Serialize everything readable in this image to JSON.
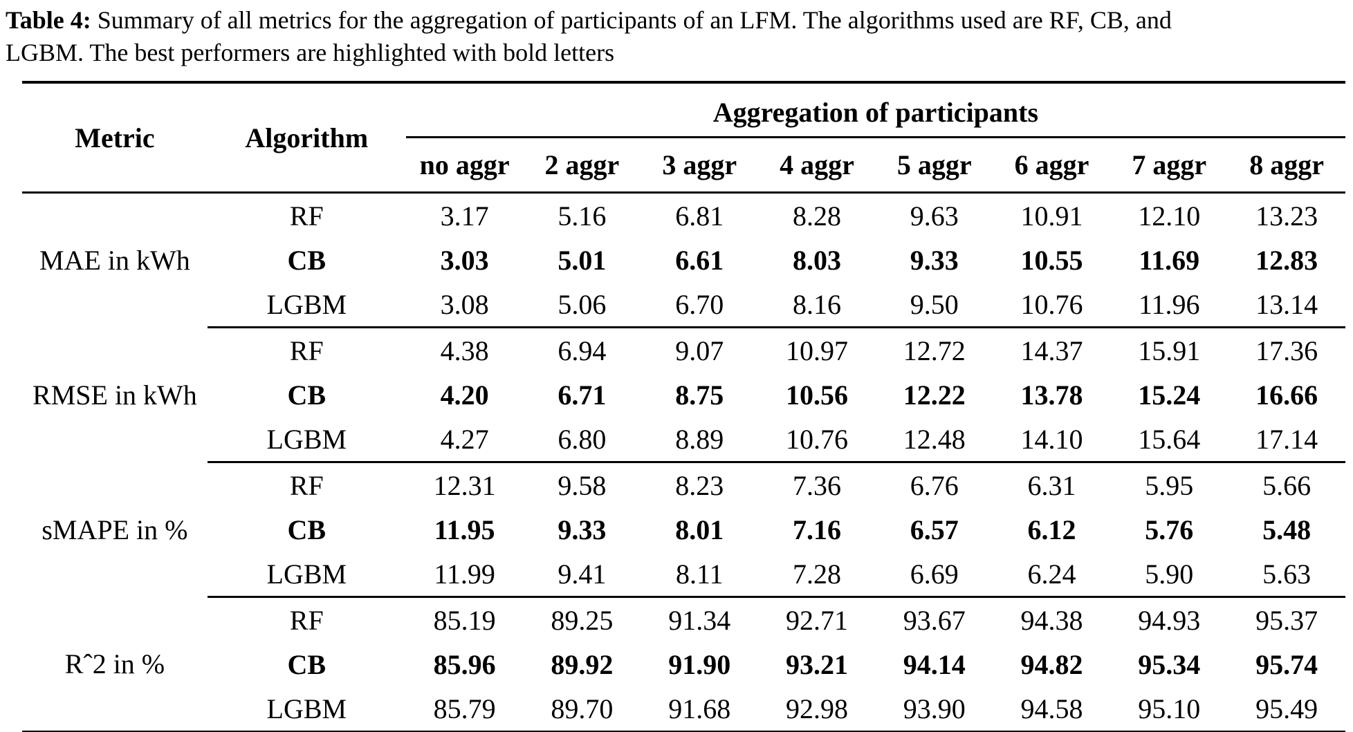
{
  "caption": {
    "label": "Table 4:",
    "line1": " Summary of all metrics for the aggregation of participants of an LFM. The algorithms used are RF, CB, and",
    "line2": "LGBM. The best performers are highlighted with bold letters",
    "full_text": "Table 4: Summary of all metrics for the aggregation of participants of an LFM. The algorithms used are RF, CB, and LGBM. The best performers are highlighted with bold letters"
  },
  "table": {
    "col1_header": "Metric",
    "col2_header": "Algorithm",
    "span_header": "Aggregation of participants",
    "agg_headers": [
      "no aggr",
      "2 aggr",
      "3 aggr",
      "4 aggr",
      "5 aggr",
      "6 aggr",
      "7 aggr",
      "8 aggr"
    ],
    "groups": [
      {
        "metric": "MAE in kWh",
        "rows": [
          {
            "algorithm": "RF",
            "bold": false,
            "values": [
              "3.17",
              "5.16",
              "6.81",
              "8.28",
              "9.63",
              "10.91",
              "12.10",
              "13.23"
            ]
          },
          {
            "algorithm": "CB",
            "bold": true,
            "values": [
              "3.03",
              "5.01",
              "6.61",
              "8.03",
              "9.33",
              "10.55",
              "11.69",
              "12.83"
            ]
          },
          {
            "algorithm": "LGBM",
            "bold": false,
            "values": [
              "3.08",
              "5.06",
              "6.70",
              "8.16",
              "9.50",
              "10.76",
              "11.96",
              "13.14"
            ]
          }
        ]
      },
      {
        "metric": "RMSE in kWh",
        "rows": [
          {
            "algorithm": "RF",
            "bold": false,
            "values": [
              "4.38",
              "6.94",
              "9.07",
              "10.97",
              "12.72",
              "14.37",
              "15.91",
              "17.36"
            ]
          },
          {
            "algorithm": "CB",
            "bold": true,
            "values": [
              "4.20",
              "6.71",
              "8.75",
              "10.56",
              "12.22",
              "13.78",
              "15.24",
              "16.66"
            ]
          },
          {
            "algorithm": "LGBM",
            "bold": false,
            "values": [
              "4.27",
              "6.80",
              "8.89",
              "10.76",
              "12.48",
              "14.10",
              "15.64",
              "17.14"
            ]
          }
        ]
      },
      {
        "metric": "sMAPE in %",
        "rows": [
          {
            "algorithm": "RF",
            "bold": false,
            "values": [
              "12.31",
              "9.58",
              "8.23",
              "7.36",
              "6.76",
              "6.31",
              "5.95",
              "5.66"
            ]
          },
          {
            "algorithm": "CB",
            "bold": true,
            "values": [
              "11.95",
              "9.33",
              "8.01",
              "7.16",
              "6.57",
              "6.12",
              "5.76",
              "5.48"
            ]
          },
          {
            "algorithm": "LGBM",
            "bold": false,
            "values": [
              "11.99",
              "9.41",
              "8.11",
              "7.28",
              "6.69",
              "6.24",
              "5.90",
              "5.63"
            ]
          }
        ]
      },
      {
        "metric": "Rˆ2 in %",
        "rows": [
          {
            "algorithm": "RF",
            "bold": false,
            "values": [
              "85.19",
              "89.25",
              "91.34",
              "92.71",
              "93.67",
              "94.38",
              "94.93",
              "95.37"
            ]
          },
          {
            "algorithm": "CB",
            "bold": true,
            "values": [
              "85.96",
              "89.92",
              "91.90",
              "93.21",
              "94.14",
              "94.82",
              "95.34",
              "95.74"
            ]
          },
          {
            "algorithm": "LGBM",
            "bold": false,
            "values": [
              "85.79",
              "89.70",
              "91.68",
              "92.98",
              "93.90",
              "94.58",
              "95.10",
              "95.49"
            ]
          }
        ]
      }
    ]
  },
  "chart_data": {
    "type": "table",
    "title": "Table 4: Summary of all metrics for the aggregation of participants of an LFM",
    "columns": [
      "Metric",
      "Algorithm",
      "no aggr",
      "2 aggr",
      "3 aggr",
      "4 aggr",
      "5 aggr",
      "6 aggr",
      "7 aggr",
      "8 aggr"
    ],
    "rows": [
      [
        "MAE in kWh",
        "RF",
        3.17,
        5.16,
        6.81,
        8.28,
        9.63,
        10.91,
        12.1,
        13.23
      ],
      [
        "MAE in kWh",
        "CB",
        3.03,
        5.01,
        6.61,
        8.03,
        9.33,
        10.55,
        11.69,
        12.83
      ],
      [
        "MAE in kWh",
        "LGBM",
        3.08,
        5.06,
        6.7,
        8.16,
        9.5,
        10.76,
        11.96,
        13.14
      ],
      [
        "RMSE in kWh",
        "RF",
        4.38,
        6.94,
        9.07,
        10.97,
        12.72,
        14.37,
        15.91,
        17.36
      ],
      [
        "RMSE in kWh",
        "CB",
        4.2,
        6.71,
        8.75,
        10.56,
        12.22,
        13.78,
        15.24,
        16.66
      ],
      [
        "RMSE in kWh",
        "LGBM",
        4.27,
        6.8,
        8.89,
        10.76,
        12.48,
        14.1,
        15.64,
        17.14
      ],
      [
        "sMAPE in %",
        "RF",
        12.31,
        9.58,
        8.23,
        7.36,
        6.76,
        6.31,
        5.95,
        5.66
      ],
      [
        "sMAPE in %",
        "CB",
        11.95,
        9.33,
        8.01,
        7.16,
        6.57,
        6.12,
        5.76,
        5.48
      ],
      [
        "sMAPE in %",
        "LGBM",
        11.99,
        9.41,
        8.11,
        7.28,
        6.69,
        6.24,
        5.9,
        5.63
      ],
      [
        "Rˆ2 in %",
        "RF",
        85.19,
        89.25,
        91.34,
        92.71,
        93.67,
        94.38,
        94.93,
        95.37
      ],
      [
        "Rˆ2 in %",
        "CB",
        85.96,
        89.92,
        91.9,
        93.21,
        94.14,
        94.82,
        95.34,
        95.74
      ],
      [
        "Rˆ2 in %",
        "LGBM",
        85.79,
        89.7,
        91.68,
        92.98,
        93.9,
        94.58,
        95.1,
        95.49
      ]
    ],
    "bold_rows_note": "CB rows are bold (best performer)"
  }
}
